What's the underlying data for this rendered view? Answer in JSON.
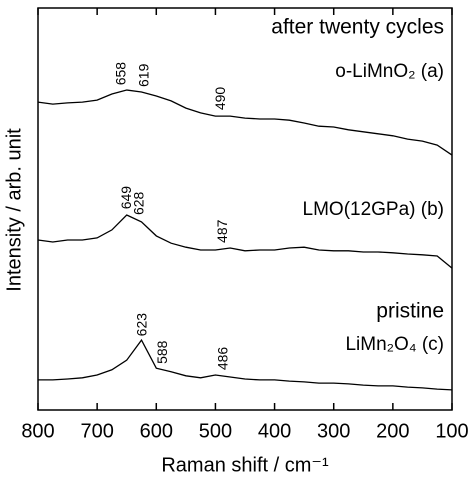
{
  "chart_data": {
    "type": "line",
    "xlabel": "Raman shift / cm⁻¹",
    "ylabel": "Intensity / arb. unit",
    "x": [
      800,
      775,
      750,
      725,
      700,
      675,
      650,
      625,
      600,
      575,
      550,
      525,
      500,
      475,
      450,
      425,
      400,
      375,
      350,
      325,
      300,
      275,
      250,
      225,
      200,
      175,
      150,
      125,
      100
    ],
    "xlim": [
      800,
      100
    ],
    "xticks": [
      800,
      700,
      600,
      500,
      400,
      300,
      200,
      100
    ],
    "ylim": [
      0,
      100
    ],
    "annotations": [
      "after twenty cycles",
      "pristine"
    ],
    "series": [
      {
        "name": "o-LiMnO₂ (a)",
        "color": "#000000",
        "peaks": [
          658,
          619,
          490
        ],
        "values": [
          76.6,
          76.1,
          76.4,
          76.6,
          77.1,
          78.6,
          79.6,
          79.1,
          78.1,
          76.9,
          75.1,
          73.9,
          73.1,
          73.1,
          72.6,
          72.4,
          72.4,
          72.1,
          71.4,
          70.6,
          70.4,
          69.7,
          69.2,
          68.7,
          68.2,
          67.4,
          66.9,
          65.9,
          63.4
        ]
      },
      {
        "name": "LMO(12GPa) (b)",
        "color": "#000000",
        "peaks": [
          649,
          628,
          487
        ],
        "values": [
          42.3,
          41.8,
          42.3,
          42.3,
          42.8,
          44.8,
          48.5,
          46.8,
          43.3,
          41.5,
          40.5,
          39.8,
          39.8,
          40.3,
          39.6,
          39.8,
          39.8,
          40.3,
          40.5,
          39.8,
          39.6,
          39.6,
          39.3,
          39.3,
          39.1,
          38.8,
          38.6,
          38.3,
          35.3
        ]
      },
      {
        "name": "LiMn₂O₄ (c)",
        "color": "#000000",
        "peaks": [
          623,
          588,
          486
        ],
        "values": [
          7.5,
          7.5,
          7.7,
          8.0,
          8.7,
          10.0,
          12.4,
          17.4,
          10.4,
          9.5,
          8.5,
          8.0,
          8.7,
          8.2,
          7.7,
          7.5,
          7.5,
          7.2,
          7.0,
          6.7,
          6.7,
          6.5,
          6.2,
          6.0,
          6.0,
          5.7,
          5.5,
          5.2,
          5.0
        ]
      }
    ]
  }
}
